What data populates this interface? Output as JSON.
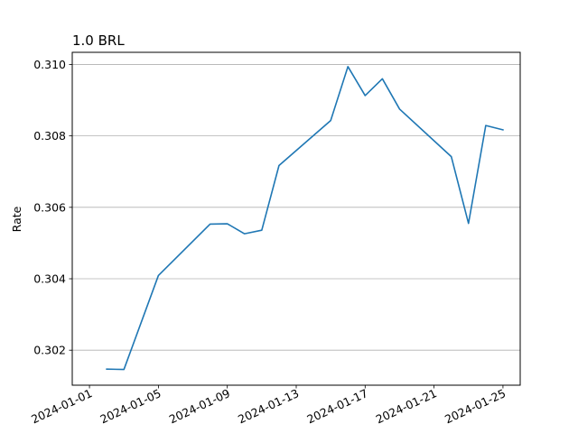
{
  "chart_data": {
    "type": "line",
    "title": "1.0 BRL",
    "xlabel": "",
    "ylabel": "Rate",
    "grid": "y-only",
    "x_ticks": [
      "2024-01-01",
      "2024-01-05",
      "2024-01-09",
      "2024-01-13",
      "2024-01-17",
      "2024-01-21",
      "2024-01-25"
    ],
    "y_ticks": [
      "0.302",
      "0.304",
      "0.306",
      "0.308",
      "0.310"
    ],
    "xlim": [
      "2023-12-31",
      "2024-01-26"
    ],
    "ylim": [
      0.30102,
      0.31034
    ],
    "series": [
      {
        "color": "#1f77b4",
        "points": [
          {
            "x": "2024-01-02",
            "y": 0.30147
          },
          {
            "x": "2024-01-03",
            "y": 0.30146
          },
          {
            "x": "2024-01-05",
            "y": 0.30409
          },
          {
            "x": "2024-01-08",
            "y": 0.30553
          },
          {
            "x": "2024-01-09",
            "y": 0.30554
          },
          {
            "x": "2024-01-10",
            "y": 0.30526
          },
          {
            "x": "2024-01-11",
            "y": 0.30536
          },
          {
            "x": "2024-01-12",
            "y": 0.30717
          },
          {
            "x": "2024-01-15",
            "y": 0.30843
          },
          {
            "x": "2024-01-16",
            "y": 0.30994
          },
          {
            "x": "2024-01-17",
            "y": 0.30913
          },
          {
            "x": "2024-01-18",
            "y": 0.3096
          },
          {
            "x": "2024-01-19",
            "y": 0.30875
          },
          {
            "x": "2024-01-22",
            "y": 0.30742
          },
          {
            "x": "2024-01-23",
            "y": 0.30555
          },
          {
            "x": "2024-01-24",
            "y": 0.30829
          },
          {
            "x": "2024-01-25",
            "y": 0.30817
          }
        ]
      }
    ]
  }
}
